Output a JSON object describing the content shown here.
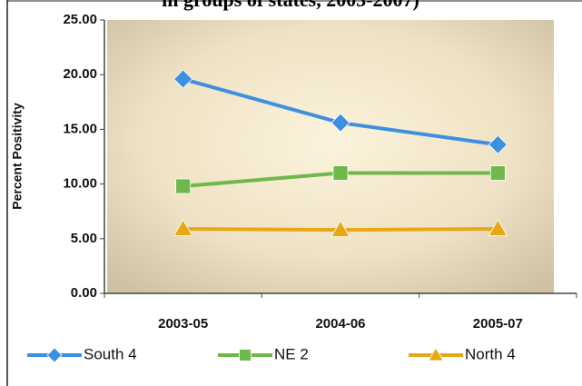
{
  "chart_data": {
    "type": "line",
    "title": "in groups of states, 2003-2007)",
    "y_label": "Percent Positivity",
    "categories": [
      "2003-05",
      "2004-06",
      "2005-07"
    ],
    "series": [
      {
        "name": "South 4",
        "color": "#3d8fe0",
        "marker": "diamond",
        "values": [
          19.6,
          15.6,
          13.6
        ]
      },
      {
        "name": "NE 2",
        "color": "#6fb84b",
        "marker": "square",
        "values": [
          9.8,
          11.0,
          11.0
        ]
      },
      {
        "name": "North 4",
        "color": "#e8a816",
        "marker": "triangle",
        "values": [
          5.9,
          5.8,
          5.9
        ]
      }
    ],
    "ylim": [
      0,
      25
    ],
    "yticks": [
      {
        "value": 0,
        "label": "0.00"
      },
      {
        "value": 5,
        "label": "5.00"
      },
      {
        "value": 10,
        "label": "10.00"
      },
      {
        "value": 15,
        "label": "15.00"
      },
      {
        "value": 20,
        "label": "20.00"
      },
      {
        "value": 25,
        "label": "25.00"
      }
    ]
  }
}
